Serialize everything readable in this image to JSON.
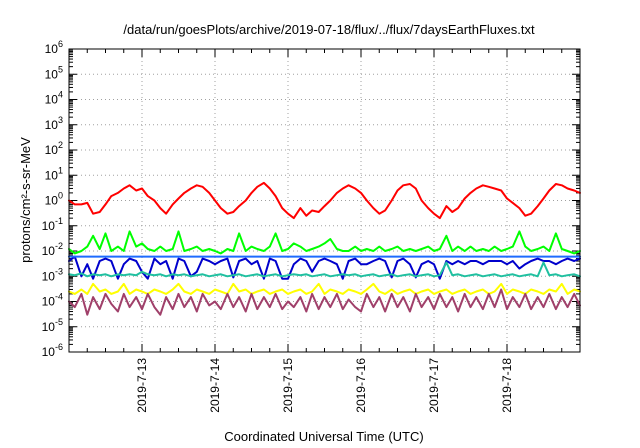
{
  "chart_data": {
    "type": "line",
    "title": "/data/run/goesPlots/archive/2019-07-18/flux/../flux/7daysEarthFluxes.txt",
    "xlabel": "Coordinated Universal Time (UTC)",
    "ylabel": "protons/cm²-s-sr-MeV",
    "yscale": "log",
    "ylim": [
      1e-06,
      1000000.0
    ],
    "xlim": [
      0,
      7
    ],
    "grid": true,
    "y_ticks": [
      {
        "base": "10",
        "exp": "-6",
        "value": 1e-06
      },
      {
        "base": "10",
        "exp": "-5",
        "value": 1e-05
      },
      {
        "base": "10",
        "exp": "-4",
        "value": 0.0001
      },
      {
        "base": "10",
        "exp": "-3",
        "value": 0.001
      },
      {
        "base": "10",
        "exp": "-2",
        "value": 0.01
      },
      {
        "base": "10",
        "exp": "-1",
        "value": 0.1
      },
      {
        "base": "10",
        "exp": "0",
        "value": 1
      },
      {
        "base": "10",
        "exp": "1",
        "value": 10
      },
      {
        "base": "10",
        "exp": "2",
        "value": 100
      },
      {
        "base": "10",
        "exp": "3",
        "value": 1000
      },
      {
        "base": "10",
        "exp": "4",
        "value": 10000
      },
      {
        "base": "10",
        "exp": "5",
        "value": 100000
      },
      {
        "base": "10",
        "exp": "6",
        "value": 1000000
      }
    ],
    "x_ticks": [
      {
        "label": "2019-7-13",
        "value": 1
      },
      {
        "label": "2019-7-14",
        "value": 2
      },
      {
        "label": "2019-7-15",
        "value": 3
      },
      {
        "label": "2019-7-16",
        "value": 4
      },
      {
        "label": "2019-7-17",
        "value": 5
      },
      {
        "label": "2019-7-18",
        "value": 6
      }
    ],
    "series": [
      {
        "color": "#ff0000",
        "x": [
          0,
          0.08,
          0.17,
          0.25,
          0.33,
          0.42,
          0.5,
          0.58,
          0.67,
          0.75,
          0.83,
          0.92,
          1,
          1.08,
          1.17,
          1.25,
          1.33,
          1.42,
          1.5,
          1.58,
          1.67,
          1.75,
          1.83,
          1.92,
          2,
          2.08,
          2.17,
          2.25,
          2.33,
          2.42,
          2.5,
          2.58,
          2.67,
          2.75,
          2.83,
          2.92,
          3,
          3.08,
          3.17,
          3.25,
          3.33,
          3.42,
          3.5,
          3.58,
          3.67,
          3.75,
          3.83,
          3.92,
          4,
          4.08,
          4.17,
          4.25,
          4.33,
          4.42,
          4.5,
          4.58,
          4.67,
          4.75,
          4.83,
          4.92,
          5,
          5.08,
          5.17,
          5.25,
          5.33,
          5.42,
          5.5,
          5.58,
          5.67,
          5.75,
          5.83,
          5.92,
          6,
          6.08,
          6.17,
          6.25,
          6.33,
          6.42,
          6.5,
          6.58,
          6.67,
          6.75,
          6.83,
          6.92,
          7
        ],
        "y": [
          1.0,
          0.7,
          0.7,
          0.8,
          0.3,
          0.35,
          0.7,
          1.5,
          2.0,
          3.0,
          4.0,
          2.5,
          3.0,
          1.5,
          1.0,
          0.5,
          0.3,
          0.7,
          1.2,
          2.0,
          3.0,
          4.0,
          3.5,
          2.0,
          1.0,
          0.5,
          0.3,
          0.35,
          0.6,
          1.0,
          2.0,
          3.5,
          5.0,
          3.0,
          1.5,
          0.5,
          0.3,
          0.2,
          0.5,
          0.25,
          0.4,
          0.35,
          0.6,
          1.0,
          2.0,
          3.0,
          4.0,
          3.0,
          2.0,
          1.0,
          0.5,
          0.3,
          0.4,
          1.0,
          2.5,
          4.0,
          4.5,
          3.0,
          1.0,
          0.5,
          0.3,
          0.2,
          0.6,
          0.35,
          0.5,
          1.2,
          2.0,
          3.0,
          4.0,
          3.5,
          3.0,
          2.5,
          1.2,
          0.8,
          0.5,
          0.25,
          0.3,
          0.6,
          1.2,
          2.5,
          4.5,
          4.0,
          3.0,
          2.5,
          2.0
        ]
      },
      {
        "color": "#00ff00",
        "x": [
          0,
          0.08,
          0.17,
          0.25,
          0.33,
          0.42,
          0.5,
          0.58,
          0.67,
          0.75,
          0.83,
          0.92,
          1,
          1.08,
          1.17,
          1.25,
          1.33,
          1.42,
          1.5,
          1.58,
          1.67,
          1.75,
          1.83,
          1.92,
          2,
          2.08,
          2.17,
          2.25,
          2.33,
          2.42,
          2.5,
          2.58,
          2.67,
          2.75,
          2.83,
          2.92,
          3,
          3.08,
          3.17,
          3.25,
          3.33,
          3.42,
          3.5,
          3.58,
          3.67,
          3.75,
          3.83,
          3.92,
          4,
          4.08,
          4.17,
          4.25,
          4.33,
          4.42,
          4.5,
          4.58,
          4.67,
          4.75,
          4.83,
          4.92,
          5,
          5.08,
          5.17,
          5.25,
          5.33,
          5.42,
          5.5,
          5.58,
          5.67,
          5.75,
          5.83,
          5.92,
          6,
          6.08,
          6.17,
          6.25,
          6.33,
          6.42,
          6.5,
          6.58,
          6.67,
          6.75,
          6.83,
          6.92,
          7
        ],
        "y": [
          0.012,
          0.008,
          0.01,
          0.015,
          0.04,
          0.012,
          0.05,
          0.01,
          0.015,
          0.01,
          0.06,
          0.015,
          0.02,
          0.012,
          0.01,
          0.015,
          0.01,
          0.012,
          0.06,
          0.01,
          0.012,
          0.015,
          0.01,
          0.012,
          0.01,
          0.008,
          0.012,
          0.01,
          0.05,
          0.01,
          0.015,
          0.012,
          0.01,
          0.015,
          0.05,
          0.01,
          0.012,
          0.02,
          0.015,
          0.01,
          0.012,
          0.015,
          0.02,
          0.03,
          0.012,
          0.01,
          0.01,
          0.015,
          0.01,
          0.012,
          0.01,
          0.015,
          0.01,
          0.012,
          0.015,
          0.01,
          0.012,
          0.01,
          0.012,
          0.015,
          0.01,
          0.012,
          0.04,
          0.01,
          0.015,
          0.01,
          0.015,
          0.01,
          0.012,
          0.01,
          0.015,
          0.01,
          0.012,
          0.015,
          0.06,
          0.015,
          0.01,
          0.012,
          0.015,
          0.01,
          0.05,
          0.012,
          0.01,
          0.008,
          0.01
        ]
      },
      {
        "color": "#0000cc",
        "x": [
          0,
          0.08,
          0.17,
          0.25,
          0.33,
          0.42,
          0.5,
          0.58,
          0.67,
          0.75,
          0.83,
          0.92,
          1,
          1.08,
          1.17,
          1.25,
          1.33,
          1.42,
          1.5,
          1.58,
          1.67,
          1.75,
          1.83,
          1.92,
          2,
          2.08,
          2.17,
          2.25,
          2.33,
          2.42,
          2.5,
          2.58,
          2.67,
          2.75,
          2.83,
          2.92,
          3,
          3.08,
          3.17,
          3.25,
          3.33,
          3.42,
          3.5,
          3.58,
          3.67,
          3.75,
          3.83,
          3.92,
          4,
          4.08,
          4.17,
          4.25,
          4.33,
          4.42,
          4.5,
          4.58,
          4.67,
          4.75,
          4.83,
          4.92,
          5,
          5.08,
          5.17,
          5.25,
          5.33,
          5.42,
          5.5,
          5.58,
          5.67,
          5.75,
          5.83,
          5.92,
          6,
          6.08,
          6.17,
          6.25,
          6.33,
          6.42,
          6.5,
          6.58,
          6.67,
          6.75,
          6.83,
          6.92,
          7
        ],
        "y": [
          0.004,
          0.006,
          0.001,
          0.003,
          0.0008,
          0.004,
          0.005,
          0.004,
          0.0008,
          0.003,
          0.005,
          0.004,
          0.0015,
          0.0008,
          0.005,
          0.003,
          0.004,
          0.0008,
          0.005,
          0.004,
          0.001,
          0.0015,
          0.005,
          0.004,
          0.003,
          0.004,
          0.005,
          0.0009,
          0.004,
          0.005,
          0.003,
          0.004,
          0.0008,
          0.005,
          0.004,
          0.0008,
          0.0008,
          0.003,
          0.005,
          0.004,
          0.0015,
          0.004,
          0.005,
          0.004,
          0.003,
          0.0008,
          0.004,
          0.005,
          0.003,
          0.003,
          0.004,
          0.005,
          0.004,
          0.0009,
          0.004,
          0.005,
          0.003,
          0.0009,
          0.003,
          0.004,
          0.003,
          0.0008,
          0.004,
          0.003,
          0.004,
          0.003,
          0.004,
          0.004,
          0.003,
          0.004,
          0.004,
          0.004,
          0.003,
          0.004,
          0.002,
          0.003,
          0.004,
          0.005,
          0.004,
          0.004,
          0.003,
          0.004,
          0.005,
          0.004,
          0.005
        ]
      },
      {
        "color": "#1e6bff",
        "x": [
          0,
          0.5,
          1,
          1.5,
          2,
          2.5,
          3,
          3.5,
          4,
          4.5,
          5,
          5.5,
          6,
          6.5,
          7
        ],
        "y": [
          0.006,
          0.006,
          0.006,
          0.006,
          0.006,
          0.006,
          0.006,
          0.006,
          0.006,
          0.006,
          0.006,
          0.006,
          0.006,
          0.006,
          0.006
        ]
      },
      {
        "color": "#20c0a0",
        "x": [
          0,
          0.08,
          0.17,
          0.25,
          0.33,
          0.42,
          0.5,
          0.58,
          0.67,
          0.75,
          0.83,
          0.92,
          1,
          1.08,
          1.17,
          1.25,
          1.33,
          1.42,
          1.5,
          1.58,
          1.67,
          1.75,
          1.83,
          1.92,
          2,
          2.08,
          2.17,
          2.25,
          2.33,
          2.42,
          2.5,
          2.58,
          2.67,
          2.75,
          2.83,
          2.92,
          3,
          3.08,
          3.17,
          3.25,
          3.33,
          3.42,
          3.5,
          3.58,
          3.67,
          3.75,
          3.83,
          3.92,
          4,
          4.08,
          4.17,
          4.25,
          4.33,
          4.42,
          4.5,
          4.58,
          4.67,
          4.75,
          4.83,
          4.92,
          5,
          5.08,
          5.17,
          5.25,
          5.33,
          5.42,
          5.5,
          5.58,
          5.67,
          5.75,
          5.83,
          5.92,
          6,
          6.08,
          6.17,
          6.25,
          6.33,
          6.42,
          6.5,
          6.58,
          6.67,
          6.75,
          6.83,
          6.92,
          7
        ],
        "y": [
          0.0012,
          0.0011,
          0.0013,
          0.001,
          0.0012,
          0.0011,
          0.0012,
          0.001,
          0.0012,
          0.0011,
          0.0012,
          0.0011,
          0.0015,
          0.0012,
          0.0011,
          0.0012,
          0.001,
          0.0012,
          0.0011,
          0.0012,
          0.001,
          0.0011,
          0.0012,
          0.001,
          0.0011,
          0.0012,
          0.001,
          0.0011,
          0.0012,
          0.001,
          0.0011,
          0.0012,
          0.001,
          0.0011,
          0.0012,
          0.001,
          0.0011,
          0.0012,
          0.0011,
          0.0012,
          0.001,
          0.0011,
          0.0012,
          0.001,
          0.0011,
          0.0012,
          0.0011,
          0.0012,
          0.001,
          0.0011,
          0.0012,
          0.001,
          0.0011,
          0.0012,
          0.001,
          0.0011,
          0.0012,
          0.001,
          0.0011,
          0.0012,
          0.001,
          0.0011,
          0.0035,
          0.0011,
          0.0012,
          0.001,
          0.0011,
          0.0012,
          0.001,
          0.0011,
          0.0012,
          0.001,
          0.0011,
          0.0012,
          0.001,
          0.0011,
          0.0012,
          0.001,
          0.0035,
          0.0011,
          0.0012,
          0.001,
          0.0011,
          0.0012,
          0.001
        ]
      },
      {
        "color": "#ffff00",
        "x": [
          0,
          0.08,
          0.17,
          0.25,
          0.33,
          0.42,
          0.5,
          0.58,
          0.67,
          0.75,
          0.83,
          0.92,
          1,
          1.08,
          1.17,
          1.25,
          1.33,
          1.42,
          1.5,
          1.58,
          1.67,
          1.75,
          1.83,
          1.92,
          2,
          2.08,
          2.17,
          2.25,
          2.33,
          2.42,
          2.5,
          2.58,
          2.67,
          2.75,
          2.83,
          2.92,
          3,
          3.08,
          3.17,
          3.25,
          3.33,
          3.42,
          3.5,
          3.58,
          3.67,
          3.75,
          3.83,
          3.92,
          4,
          4.08,
          4.17,
          4.25,
          4.33,
          4.42,
          4.5,
          4.58,
          4.67,
          4.75,
          4.83,
          4.92,
          5,
          5.08,
          5.17,
          5.25,
          5.33,
          5.42,
          5.5,
          5.58,
          5.67,
          5.75,
          5.83,
          5.92,
          6,
          6.08,
          6.17,
          6.25,
          6.33,
          6.42,
          6.5,
          6.58,
          6.67,
          6.75,
          6.83,
          6.92,
          7
        ],
        "y": [
          0.00025,
          0.0002,
          0.0003,
          0.0002,
          0.0005,
          0.00025,
          0.0003,
          0.0002,
          0.00025,
          0.0005,
          0.0002,
          0.0003,
          0.00025,
          0.0002,
          0.0003,
          0.00025,
          0.0002,
          0.0003,
          0.0005,
          0.00025,
          0.0002,
          0.0003,
          0.00025,
          0.0002,
          0.0003,
          0.00025,
          0.0002,
          0.0005,
          0.00025,
          0.0003,
          0.0002,
          0.00025,
          0.0003,
          0.0002,
          0.00025,
          0.0003,
          0.0002,
          0.00025,
          0.0003,
          0.0002,
          0.00025,
          0.0005,
          0.0002,
          0.0003,
          0.00025,
          0.0002,
          0.0003,
          0.00025,
          0.0002,
          0.0003,
          0.0005,
          0.00025,
          0.0002,
          0.0003,
          0.0002,
          0.00025,
          0.0003,
          0.0002,
          0.00025,
          0.0003,
          0.0002,
          0.00025,
          0.0003,
          0.0002,
          0.00025,
          0.0003,
          0.0002,
          0.00025,
          0.0003,
          0.0002,
          0.00025,
          0.0005,
          0.0002,
          0.0003,
          0.00025,
          0.0002,
          0.0003,
          0.00025,
          0.0002,
          0.0003,
          0.00025,
          0.0005,
          0.0002,
          0.0003,
          0.00025
        ]
      },
      {
        "color": "#a0406a",
        "x": [
          0,
          0.08,
          0.17,
          0.25,
          0.33,
          0.42,
          0.5,
          0.58,
          0.67,
          0.75,
          0.83,
          0.92,
          1,
          1.08,
          1.17,
          1.25,
          1.33,
          1.42,
          1.5,
          1.58,
          1.67,
          1.75,
          1.83,
          1.92,
          2,
          2.08,
          2.17,
          2.25,
          2.33,
          2.42,
          2.5,
          2.58,
          2.67,
          2.75,
          2.83,
          2.92,
          3,
          3.08,
          3.17,
          3.25,
          3.33,
          3.42,
          3.5,
          3.58,
          3.67,
          3.75,
          3.83,
          3.92,
          4,
          4.08,
          4.17,
          4.25,
          4.33,
          4.42,
          4.5,
          4.58,
          4.67,
          4.75,
          4.83,
          4.92,
          5,
          5.08,
          5.17,
          5.25,
          5.33,
          5.42,
          5.5,
          5.58,
          5.67,
          5.75,
          5.83,
          5.92,
          6,
          6.08,
          6.17,
          6.25,
          6.33,
          6.42,
          6.5,
          6.58,
          6.67,
          6.75,
          6.83,
          6.92,
          7
        ],
        "y": [
          0.0001,
          6e-05,
          0.0002,
          3e-05,
          0.00015,
          5e-05,
          0.0002,
          8e-05,
          4e-05,
          0.0002,
          6e-05,
          0.00015,
          5e-05,
          0.0002,
          6e-05,
          3e-05,
          0.00015,
          5e-05,
          0.0002,
          6e-05,
          0.00015,
          4e-05,
          0.0002,
          7e-05,
          0.0001,
          5e-05,
          0.0002,
          6e-05,
          0.00015,
          4e-05,
          0.0002,
          5e-05,
          0.00015,
          6e-05,
          0.0002,
          5e-05,
          0.0001,
          6e-05,
          0.00015,
          4e-05,
          0.0002,
          5e-05,
          0.00015,
          6e-05,
          0.0002,
          5e-05,
          0.00012,
          6e-05,
          4e-05,
          0.0002,
          6e-05,
          0.00015,
          4e-05,
          0.0002,
          6e-05,
          0.00015,
          4e-05,
          0.0002,
          6e-05,
          0.00015,
          5e-05,
          0.0002,
          6e-05,
          0.00015,
          4e-05,
          0.0002,
          6e-05,
          0.00015,
          5e-05,
          0.0002,
          6e-05,
          0.0003,
          5e-05,
          0.00015,
          6e-05,
          0.0002,
          5e-05,
          0.00015,
          6e-05,
          0.0002,
          5e-05,
          0.00015,
          6e-05,
          0.0002,
          7e-05
        ]
      }
    ]
  }
}
